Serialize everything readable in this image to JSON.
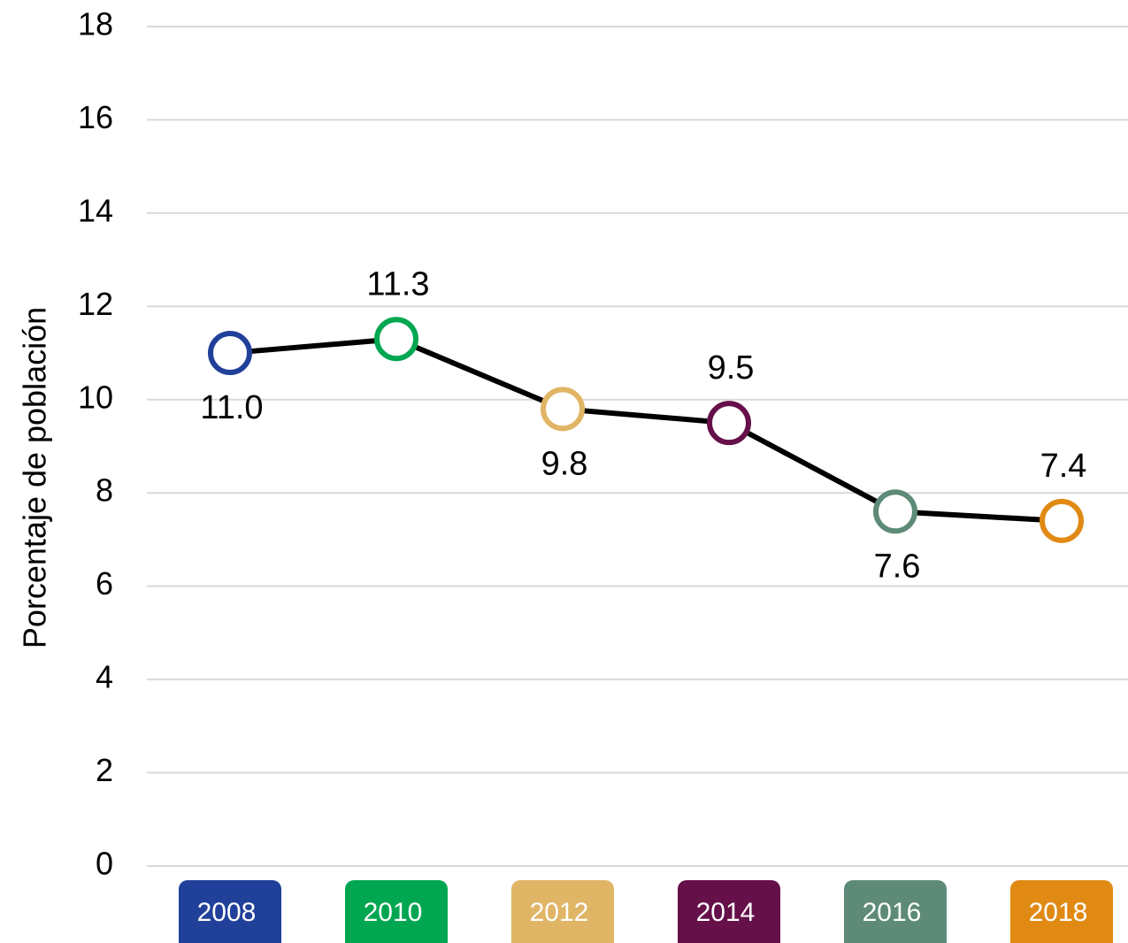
{
  "chart_data": {
    "type": "line",
    "y_label": "Porcentaje de población",
    "categories": [
      "2008",
      "2010",
      "2012",
      "2014",
      "2016",
      "2018"
    ],
    "category_colors": [
      "#21409a",
      "#00a650",
      "#e0b565",
      "#651049",
      "#5d8b78",
      "#e08a14"
    ],
    "series": [
      {
        "color": "#000000",
        "values": [
          11.0,
          11.3,
          9.8,
          9.5,
          7.6,
          7.4
        ],
        "value_labels": [
          "11.0",
          "11.3",
          "9.8",
          "9.5",
          "7.6",
          "7.4"
        ]
      }
    ],
    "ylim": [
      0,
      18
    ],
    "yticks": [
      0,
      2,
      4,
      6,
      8,
      10,
      12,
      14,
      16,
      18
    ],
    "grid": true
  }
}
